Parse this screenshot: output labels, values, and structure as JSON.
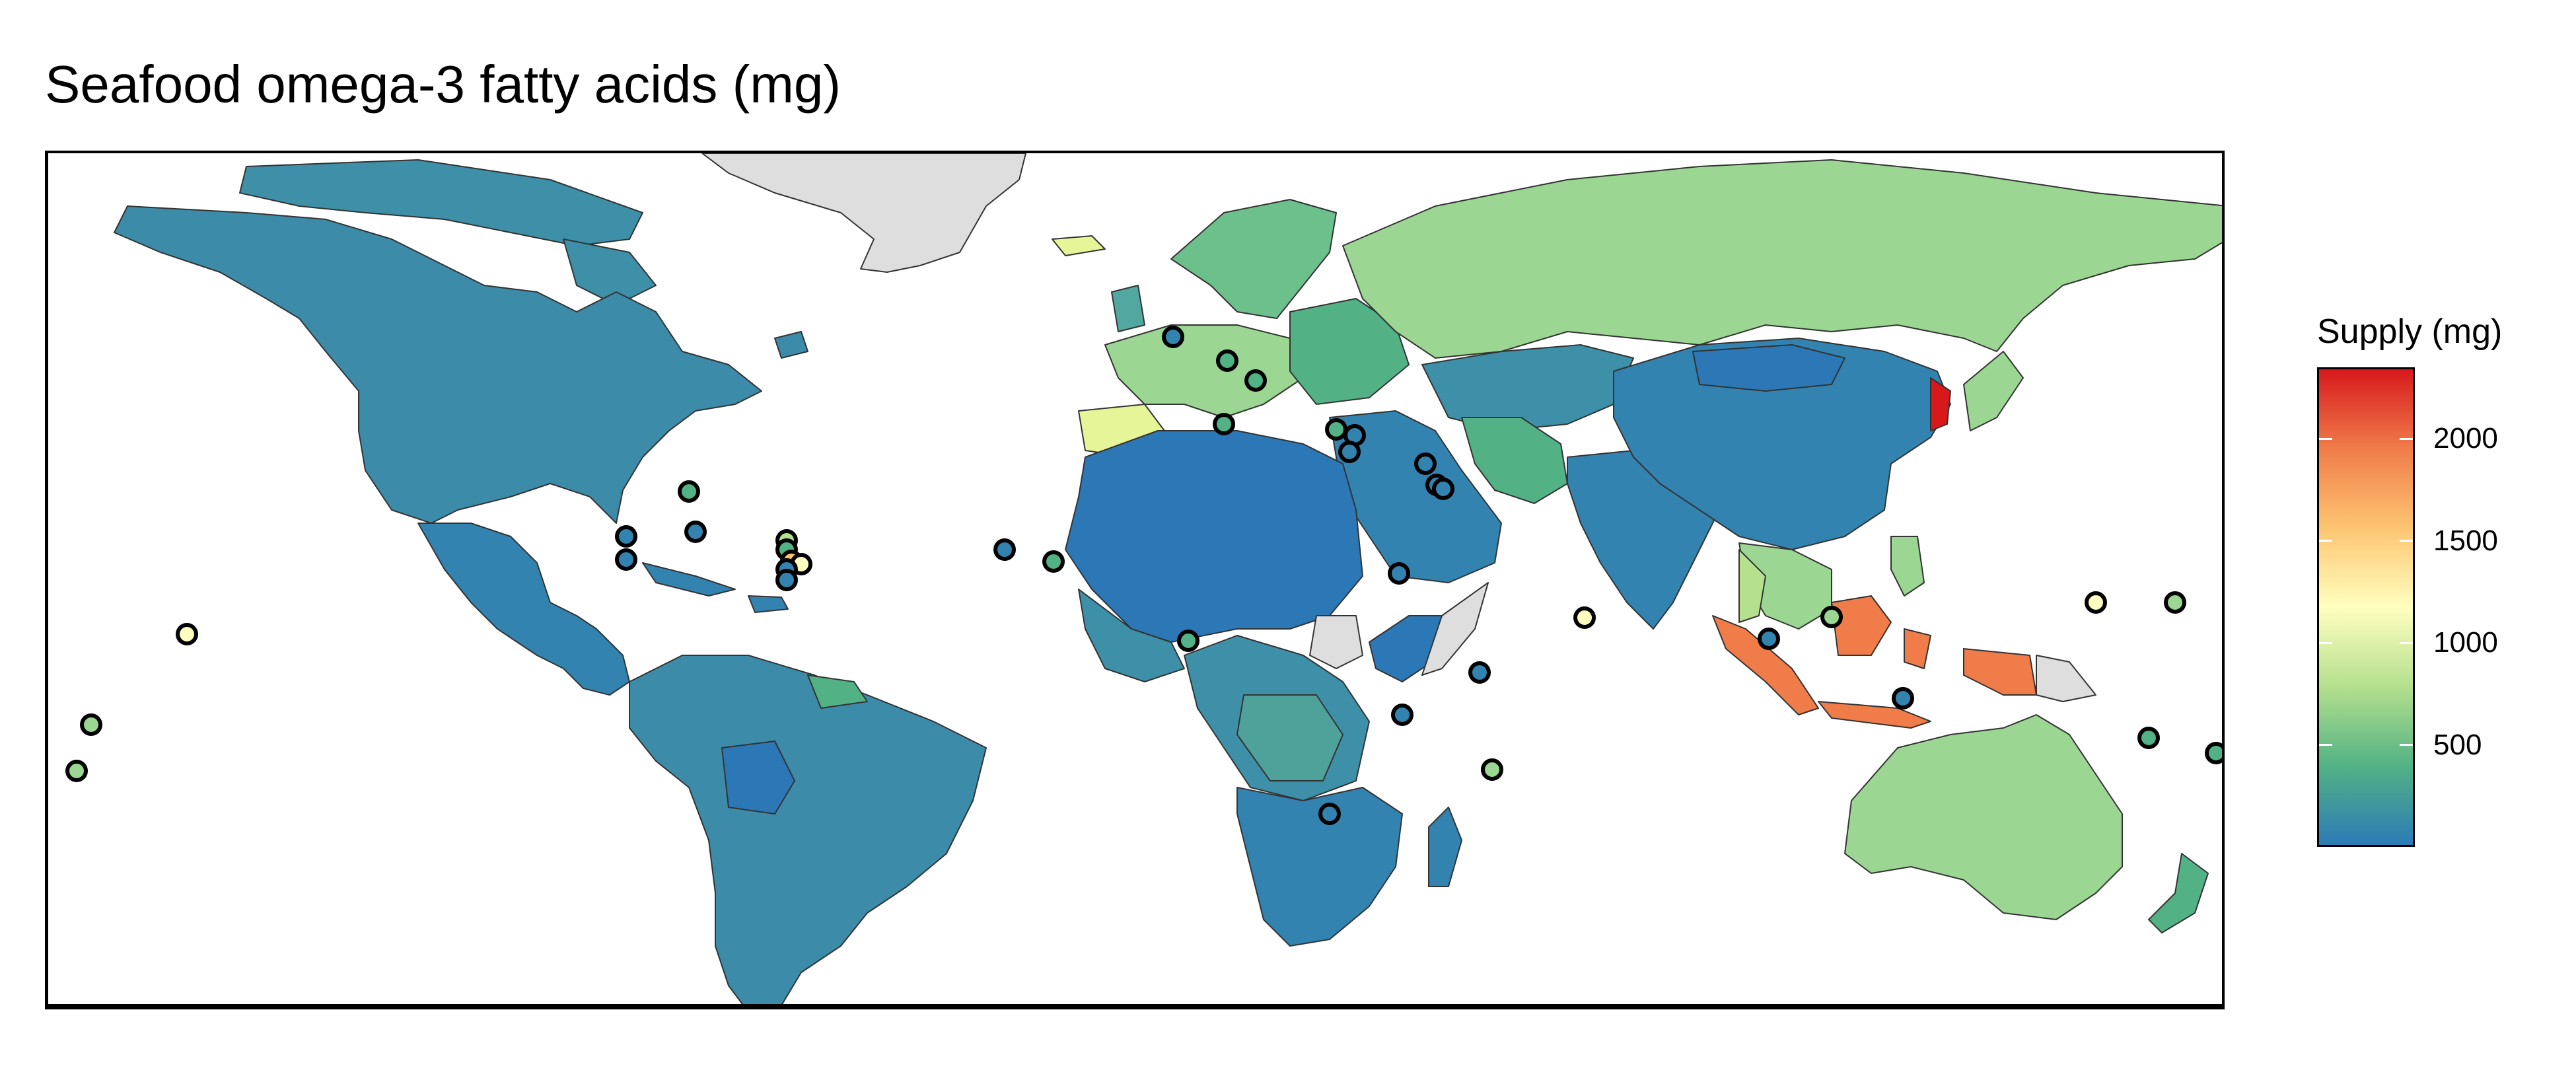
{
  "title": "Seafood omega-3 fatty acids (mg)",
  "legend": {
    "title": "Supply (mg)",
    "range": [
      0,
      2350
    ],
    "ticks": [
      {
        "value": 500,
        "label": "500"
      },
      {
        "value": 1000,
        "label": "1000"
      },
      {
        "value": 1500,
        "label": "1500"
      },
      {
        "value": 2000,
        "label": "2000"
      }
    ],
    "colors": [
      "#2C7BB6",
      "#52B285",
      "#B5E08E",
      "#FFFFBF",
      "#FDC572",
      "#F07C4A",
      "#D7191C"
    ]
  },
  "colors": {
    "no_data": "#DEDEDE",
    "water": "#FFFFFF",
    "border": "#333333"
  }
}
